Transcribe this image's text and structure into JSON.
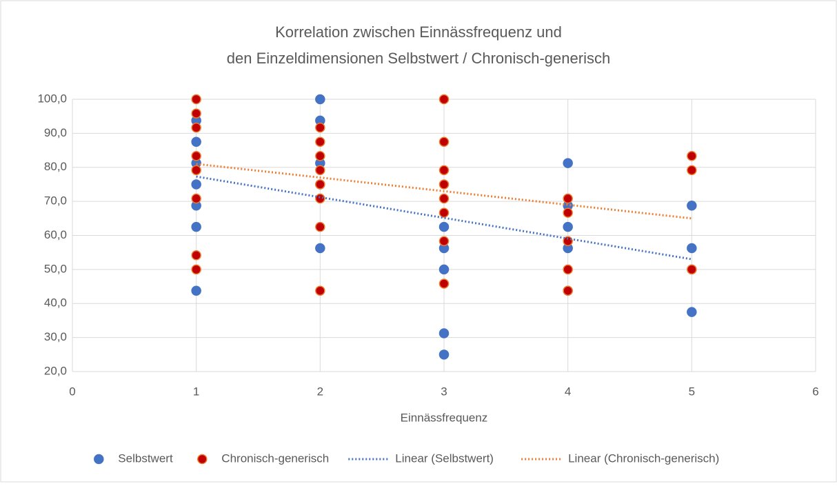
{
  "chart_data": {
    "type": "scatter",
    "title": [
      "Korrelation zwischen Einnässfrequenz und",
      "den Einzeldimensionen Selbstwert / Chronisch-generisch"
    ],
    "xlabel": "Einnässfrequenz",
    "xlim": [
      0,
      6
    ],
    "xticks": [
      0,
      1,
      2,
      3,
      4,
      5,
      6
    ],
    "ylim": [
      20,
      100
    ],
    "yticks": [
      {
        "value": 20,
        "label": "20,0"
      },
      {
        "value": 30,
        "label": "30,0"
      },
      {
        "value": 40,
        "label": "40,0"
      },
      {
        "value": 50,
        "label": "50,0"
      },
      {
        "value": 60,
        "label": "60,0"
      },
      {
        "value": 70,
        "label": "70,0"
      },
      {
        "value": 80,
        "label": "80,0"
      },
      {
        "value": 90,
        "label": "90,0"
      },
      {
        "value": 100,
        "label": "100,0"
      }
    ],
    "grid": true,
    "legend": "bottom",
    "series": [
      {
        "name": "Selbstwert",
        "color": "#4472c4",
        "edgecolor": "#4472c4",
        "x": [
          1,
          1,
          1,
          1,
          1,
          1,
          1,
          2,
          2,
          2,
          2,
          2,
          3,
          3,
          3,
          3,
          3,
          4,
          4,
          4,
          4,
          4,
          5,
          5,
          5,
          5
        ],
        "values": [
          93.75,
          87.5,
          81.25,
          75,
          68.75,
          62.5,
          43.75,
          100,
          93.75,
          81.25,
          75,
          56.25,
          62.5,
          56.25,
          50,
          31.25,
          25,
          81.25,
          68.75,
          62.5,
          56.25,
          43.75,
          68.75,
          56.25,
          50,
          37.5
        ]
      },
      {
        "name": "Chronisch-generisch",
        "color": "#c00000",
        "edgecolor": "#ed7d31",
        "x": [
          1,
          1,
          1,
          1,
          1,
          1,
          1,
          1,
          2,
          2,
          2,
          2,
          2,
          2,
          2,
          2,
          3,
          3,
          3,
          3,
          3,
          3,
          3,
          3,
          4,
          4,
          4,
          4,
          4,
          5,
          5,
          5
        ],
        "values": [
          100,
          95.83,
          91.67,
          83.33,
          79.17,
          70.83,
          54.17,
          50,
          91.67,
          87.5,
          83.33,
          79.17,
          75,
          70.83,
          62.5,
          43.75,
          100,
          87.5,
          79.17,
          75,
          70.83,
          66.67,
          58.33,
          45.83,
          70.83,
          66.67,
          58.33,
          50,
          43.75,
          83.33,
          79.17,
          50
        ]
      }
    ],
    "trendlines": [
      {
        "name": "Linear (Selbstwert)",
        "color": "#4472c4",
        "x": [
          1,
          5
        ],
        "values": [
          77.3,
          53.0
        ]
      },
      {
        "name": "Linear (Chronisch-generisch)",
        "color": "#ed7d31",
        "x": [
          1,
          5
        ],
        "values": [
          81.0,
          65.0
        ]
      }
    ]
  }
}
